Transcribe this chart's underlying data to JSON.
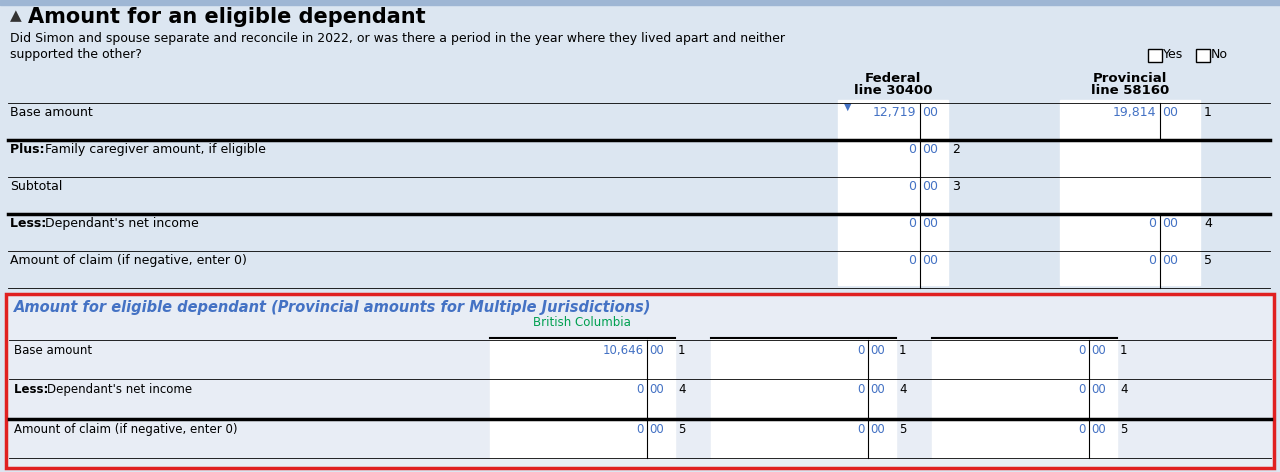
{
  "bg_color": "#dce6f1",
  "top_bar_color": "#9eb6d4",
  "title": "Amount for an eligible dependant",
  "title_fontsize": 15,
  "question_text1": "Did Simon and spouse separate and reconcile in 2022, or was there a period in the year where they lived apart and neither",
  "question_text2": "supported the other?",
  "federal_header1": "Federal",
  "federal_header2": "line 30400",
  "provincial_header1": "Provincial",
  "provincial_header2": "line 58160",
  "upper_rows": [
    {
      "label": "Base amount",
      "federal_val": "12,719",
      "federal_cents": "00",
      "line_num_fed": "",
      "prov_val": "19,814",
      "prov_cents": "00",
      "line_num_prov": "1",
      "bold_prefix": "",
      "has_prov": true,
      "thick_top": false
    },
    {
      "label": "Family caregiver amount, if eligible",
      "federal_val": "0",
      "federal_cents": "00",
      "line_num_fed": "2",
      "prov_val": "",
      "prov_cents": "",
      "line_num_prov": "",
      "bold_prefix": "Plus: ",
      "has_prov": false,
      "thick_top": true
    },
    {
      "label": "Subtotal",
      "federal_val": "0",
      "federal_cents": "00",
      "line_num_fed": "3",
      "prov_val": "",
      "prov_cents": "",
      "line_num_prov": "",
      "bold_prefix": "",
      "has_prov": false,
      "thick_top": false
    },
    {
      "label": "Dependant's net income",
      "federal_val": "0",
      "federal_cents": "00",
      "line_num_fed": "",
      "prov_val": "0",
      "prov_cents": "00",
      "line_num_prov": "4",
      "bold_prefix": "Less: ",
      "has_prov": true,
      "thick_top": true
    },
    {
      "label": "Amount of claim (if negative, enter 0)",
      "federal_val": "0",
      "federal_cents": "00",
      "line_num_fed": "",
      "prov_val": "0",
      "prov_cents": "00",
      "line_num_prov": "5",
      "bold_prefix": "",
      "has_prov": true,
      "thick_top": false
    }
  ],
  "section2_title": "Amount for eligible dependant (Provincial amounts for Multiple Jurisdictions)",
  "section2_title_color": "#4472c4",
  "section2_col1_header": "British Columbia",
  "section2_col1_header_color": "#00a050",
  "section2_rows": [
    {
      "label": "Base amount",
      "bold_prefix": "",
      "col1_val": "10,646",
      "col1_cents": "00",
      "line1": "1",
      "col2_val": "0",
      "col2_cents": "00",
      "line2": "1",
      "col3_val": "0",
      "col3_cents": "00",
      "line3": "1",
      "thick_top": false
    },
    {
      "label": "Dependant's net income",
      "bold_prefix": "Less: ",
      "col1_val": "0",
      "col1_cents": "00",
      "line1": "4",
      "col2_val": "0",
      "col2_cents": "00",
      "line2": "4",
      "col3_val": "0",
      "col3_cents": "00",
      "line3": "4",
      "thick_top": false
    },
    {
      "label": "Amount of claim (if negative, enter 0)",
      "bold_prefix": "",
      "col1_val": "0",
      "col1_cents": "00",
      "line1": "5",
      "col2_val": "0",
      "col2_cents": "00",
      "line2": "5",
      "col3_val": "0",
      "col3_cents": "00",
      "line3": "5",
      "thick_top": true
    }
  ],
  "value_color": "#4472c4",
  "white": "#ffffff",
  "black": "#000000",
  "section2_bg": "#dce6f1",
  "section2_border_color": "#e02020",
  "section2_inner_bg": "#e8edf5"
}
